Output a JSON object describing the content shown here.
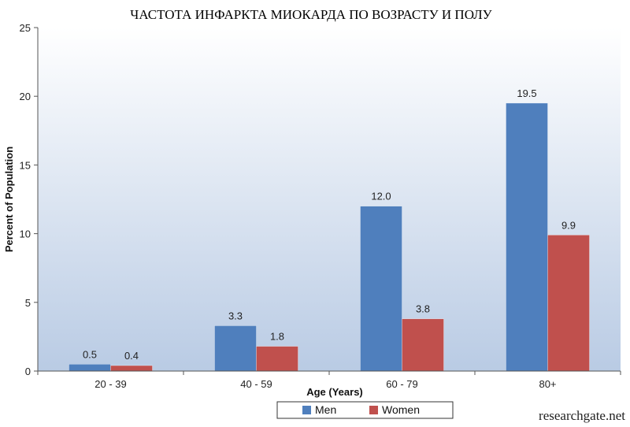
{
  "chart_data": {
    "type": "bar",
    "title": "ЧАСТОТА ИНФАРКТА МИОКАРДА ПО ВОЗРАСТУ И ПОЛУ",
    "xlabel": "Age (Years)",
    "ylabel": "Percent of Population",
    "categories": [
      "20 - 39",
      "40 - 59",
      "60 - 79",
      "80+"
    ],
    "series": [
      {
        "name": "Men",
        "values": [
          0.5,
          3.3,
          12.0,
          19.5
        ],
        "labels": [
          "0.5",
          "3.3",
          "12.0",
          "19.5"
        ],
        "color": "#4f7fbd"
      },
      {
        "name": "Women",
        "values": [
          0.4,
          1.8,
          3.8,
          9.9
        ],
        "labels": [
          "0.4",
          "1.8",
          "3.8",
          "9.9"
        ],
        "color": "#c0504d"
      }
    ],
    "ylim": [
      0,
      25
    ],
    "yticks": [
      0,
      5,
      10,
      15,
      20,
      25
    ],
    "grid": false,
    "legend_position": "bottom"
  },
  "source": "researchgate.net"
}
